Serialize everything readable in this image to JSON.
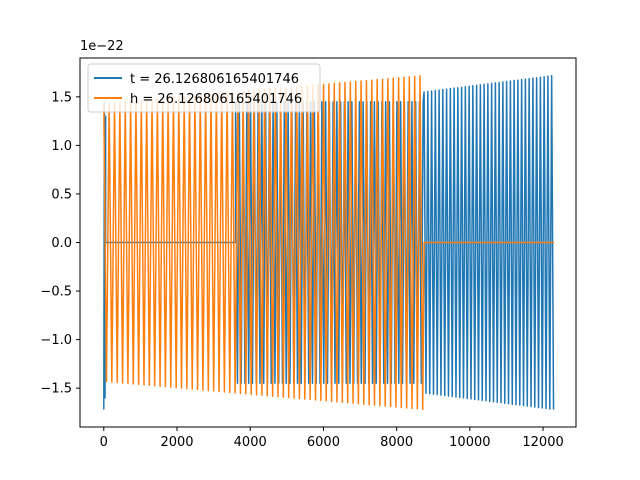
{
  "chart_data": {
    "type": "line",
    "title": "",
    "xlabel": "",
    "ylabel": "",
    "x_ticks": [
      0,
      2000,
      4000,
      6000,
      8000,
      10000,
      12000
    ],
    "x_tick_labels": [
      "0",
      "2000",
      "4000",
      "6000",
      "8000",
      "10000",
      "12000"
    ],
    "y_ticks": [
      -1.5,
      -1.0,
      -0.5,
      0.0,
      0.5,
      1.0,
      1.5
    ],
    "y_tick_labels": [
      "−1.5",
      "−1.0",
      "−0.5",
      "0.0",
      "0.5",
      "1.0",
      "1.5"
    ],
    "y_offset_text": "1e−22",
    "xlim": [
      -650,
      12900
    ],
    "ylim": [
      -1.9,
      1.9
    ],
    "grid": false,
    "legend_position": "top-left",
    "series": [
      {
        "name": "t = 26.126806165401746",
        "color": "#1f77b4",
        "x_range": [
          0,
          12300
        ],
        "amplitude_start": 1.43,
        "amplitude_end": 1.72,
        "cycles": 120,
        "segments": [
          {
            "x_range": [
              0,
              50
            ],
            "kind": "burst",
            "values": [
              -1.72,
              1.45,
              -1.6,
              1.3
            ]
          },
          {
            "x_range": [
              50,
              3600
            ],
            "kind": "flat",
            "value": 0.0
          },
          {
            "x_range": [
              3600,
              8750
            ],
            "kind": "oscillation",
            "amplitude": 1.45
          },
          {
            "x_range": [
              8750,
              12300
            ],
            "kind": "oscillation",
            "amplitude_start": 1.55,
            "amplitude_end": 1.72
          }
        ]
      },
      {
        "name": "h = 26.126806165401746",
        "color": "#ff7f0e",
        "x_range": [
          0,
          12300
        ],
        "amplitude_start": 1.43,
        "amplitude_end": 1.72,
        "cycles": 84,
        "segments": [
          {
            "x_range": [
              0,
              8750
            ],
            "kind": "oscillation",
            "amplitude_start": 1.43,
            "amplitude_end": 1.72
          },
          {
            "x_range": [
              8750,
              12300
            ],
            "kind": "flat",
            "value": 0.0
          }
        ]
      }
    ]
  }
}
